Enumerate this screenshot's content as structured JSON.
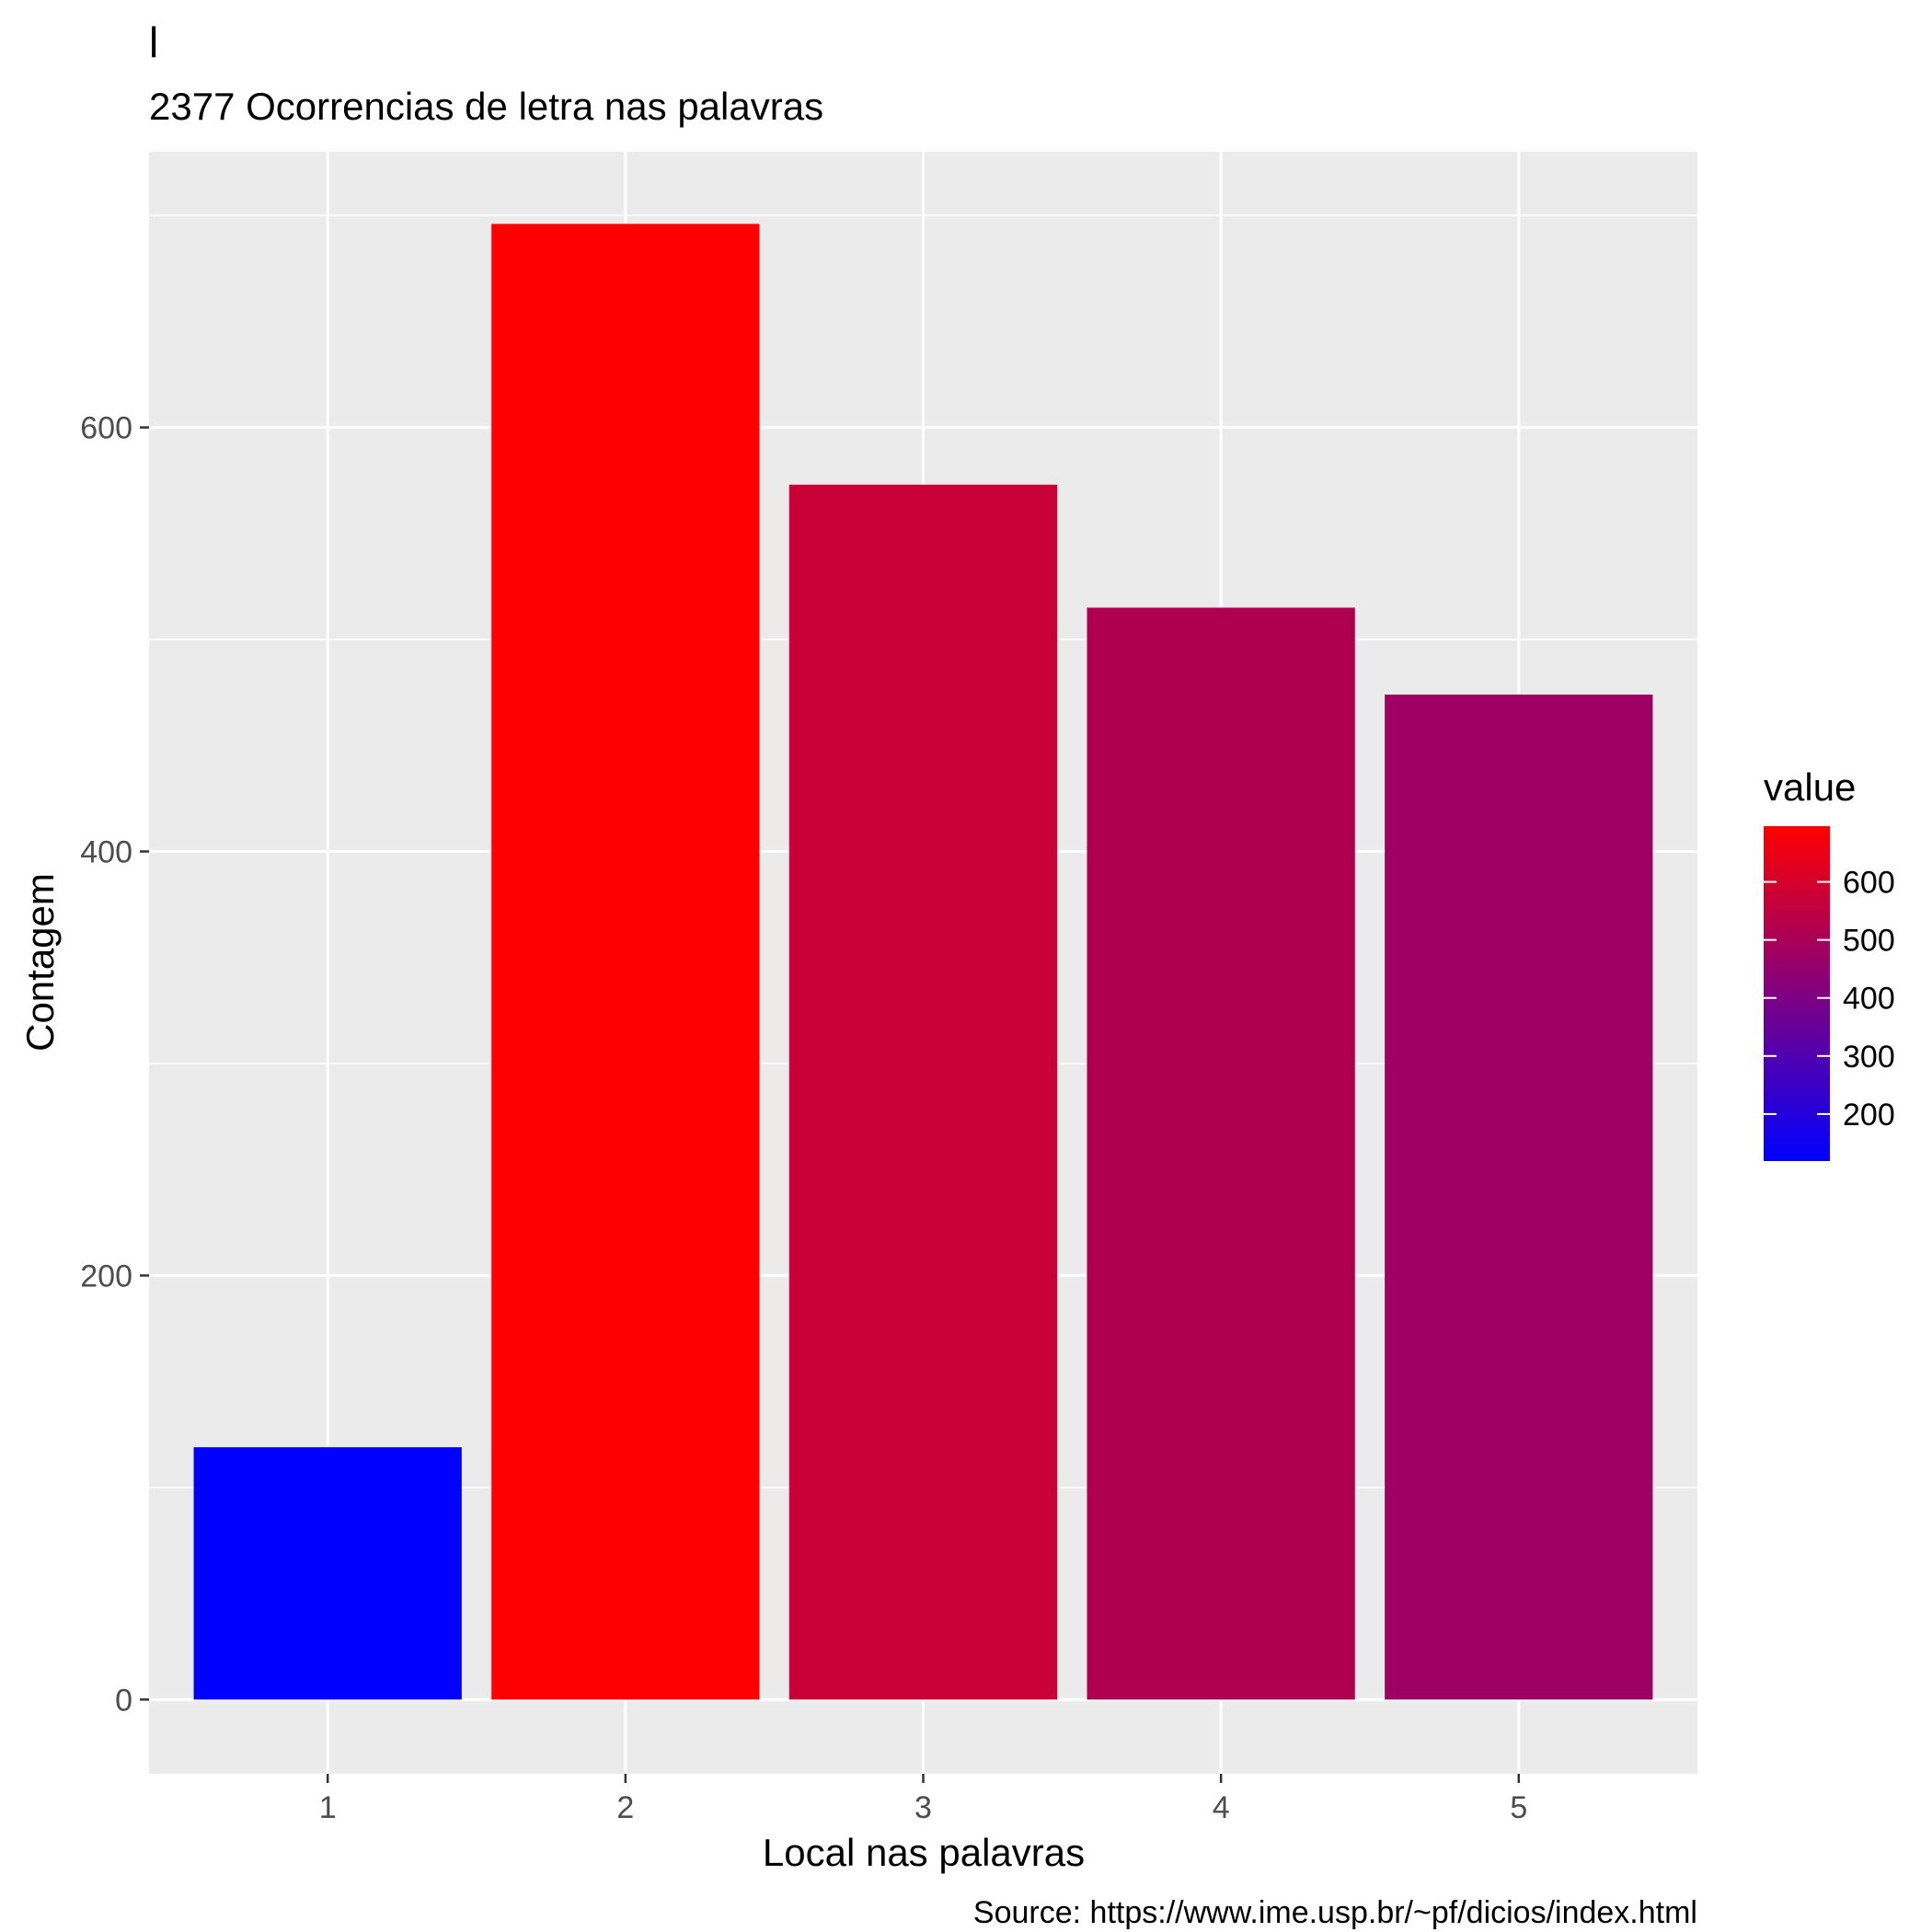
{
  "chart_data": {
    "type": "bar",
    "title": "l",
    "subtitle": "2377 Ocorrencias de letra nas palavras",
    "xlabel": "Local nas palavras",
    "ylabel": "Contagem",
    "caption": "Source: https://www.ime.usp.br/~pf/dicios/index.html",
    "categories": [
      "1",
      "2",
      "3",
      "4",
      "5"
    ],
    "values": [
      119,
      696,
      573,
      515,
      474
    ],
    "ylim": [
      -35,
      730
    ],
    "yticks": [
      0,
      200,
      400,
      600
    ],
    "yticks_minor": [
      100,
      300,
      500,
      700
    ],
    "grid": true,
    "legend": {
      "title": "value",
      "position": "right",
      "colors": {
        "low": "#0000ff",
        "high": "#ff0000"
      },
      "range": [
        119,
        696
      ],
      "ticks": [
        200,
        300,
        400,
        500,
        600
      ]
    }
  }
}
